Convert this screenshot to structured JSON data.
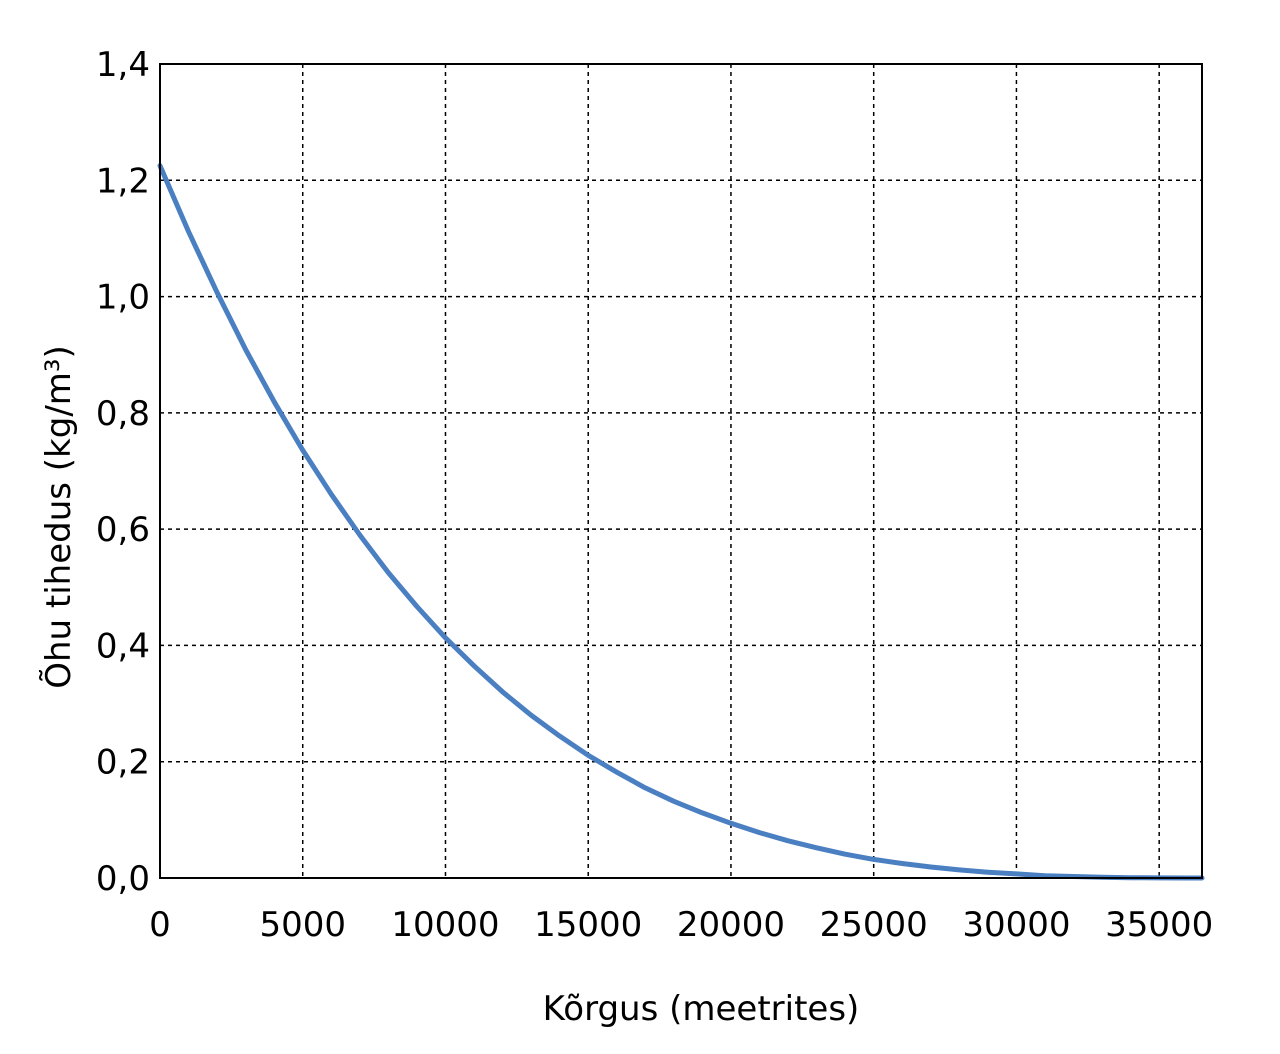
{
  "chart_data": {
    "type": "line",
    "title": "",
    "xlabel": "Kõrgus (meetrites)",
    "ylabel": "Õhu tihedus (kg/m³)",
    "xlim": [
      0,
      36500
    ],
    "ylim": [
      0,
      1.4
    ],
    "x_ticks": [
      0,
      5000,
      10000,
      15000,
      20000,
      25000,
      30000,
      35000
    ],
    "x_tick_labels": [
      "0",
      "5000",
      "10000",
      "15000",
      "20000",
      "25000",
      "30000",
      "35000"
    ],
    "y_ticks": [
      0,
      0.2,
      0.4,
      0.6,
      0.8,
      1.0,
      1.2,
      1.4
    ],
    "y_tick_labels": [
      "0,0",
      "0,2",
      "0,4",
      "0,6",
      "0,8",
      "1,0",
      "1,2",
      "1,4"
    ],
    "grid": true,
    "grid_style": "dashed",
    "series": [
      {
        "color": "#4a7fc1",
        "x": [
          0,
          1000,
          2000,
          3000,
          4000,
          5000,
          6000,
          7000,
          8000,
          9000,
          10000,
          11000,
          12000,
          13000,
          14000,
          15000,
          16000,
          17000,
          18000,
          19000,
          20000,
          21000,
          22000,
          23000,
          24000,
          25000,
          26000,
          27000,
          28000,
          29000,
          30000,
          31000,
          32000,
          33000,
          34000,
          35000,
          36000,
          36500
        ],
        "y": [
          1.225,
          1.112,
          1.007,
          0.909,
          0.819,
          0.736,
          0.66,
          0.59,
          0.525,
          0.467,
          0.413,
          0.365,
          0.32,
          0.28,
          0.244,
          0.211,
          0.182,
          0.155,
          0.132,
          0.112,
          0.094,
          0.078,
          0.064,
          0.052,
          0.041,
          0.032,
          0.025,
          0.019,
          0.014,
          0.01,
          0.007,
          0.004,
          0.0025,
          0.0013,
          0.0005,
          0.0001,
          0.0,
          0.0
        ]
      }
    ]
  }
}
